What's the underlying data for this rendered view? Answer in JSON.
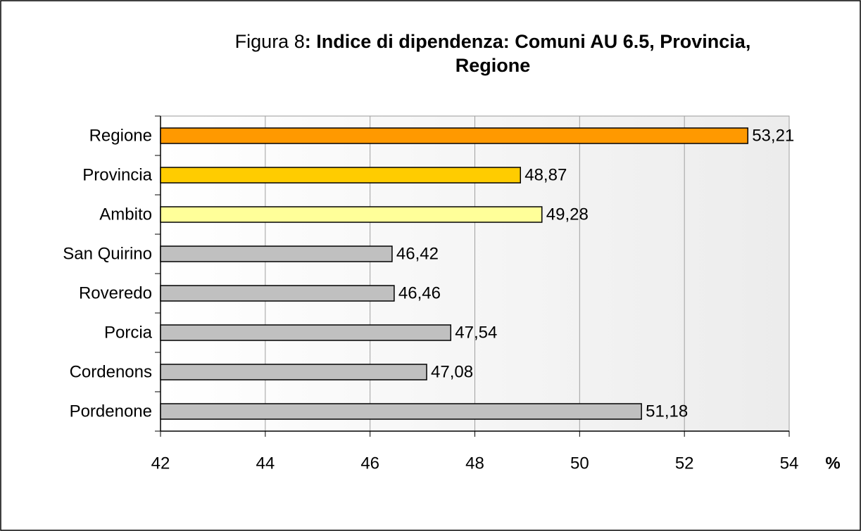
{
  "chart_data": {
    "type": "barh",
    "title_label": "Figura 8",
    "title": ": Indice di dipendenza: Comuni AU 6.5, Provincia, Regione",
    "categories": [
      "Regione",
      "Provincia",
      "Ambito",
      "San Quirino",
      "Roveredo",
      "Porcia",
      "Cordenons",
      "Pordenone"
    ],
    "values": [
      53.21,
      48.87,
      49.28,
      46.42,
      46.46,
      47.54,
      47.08,
      51.18
    ],
    "value_labels": [
      "53,21",
      "48,87",
      "49,28",
      "46,42",
      "46,46",
      "47,54",
      "47,08",
      "51,18"
    ],
    "colors": [
      "#ff9900",
      "#ffcc00",
      "#ffff99",
      "#c0c0c0",
      "#c0c0c0",
      "#c0c0c0",
      "#c0c0c0",
      "#c0c0c0"
    ],
    "xlim": [
      42,
      54
    ],
    "xticks": [
      42,
      44,
      46,
      48,
      50,
      52,
      54
    ],
    "x_label": "%",
    "grid": true
  }
}
